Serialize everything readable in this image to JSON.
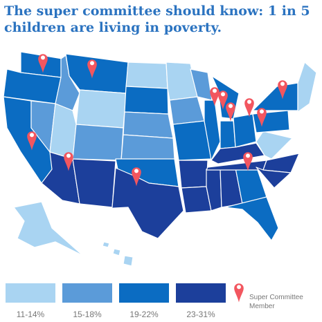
{
  "title": "The super committee should know: 1 in 5 children are living in poverty.",
  "legend": [
    {
      "label": "11-14%",
      "color": "#a9d4f2"
    },
    {
      "label": "15-18%",
      "color": "#5b9bd9"
    },
    {
      "label": "19-22%",
      "color": "#0b6cc2"
    },
    {
      "label": "23-31%",
      "color": "#1c3f9b"
    }
  ],
  "member_label": "Super Committee Member",
  "pin_color": "#f2565f"
}
